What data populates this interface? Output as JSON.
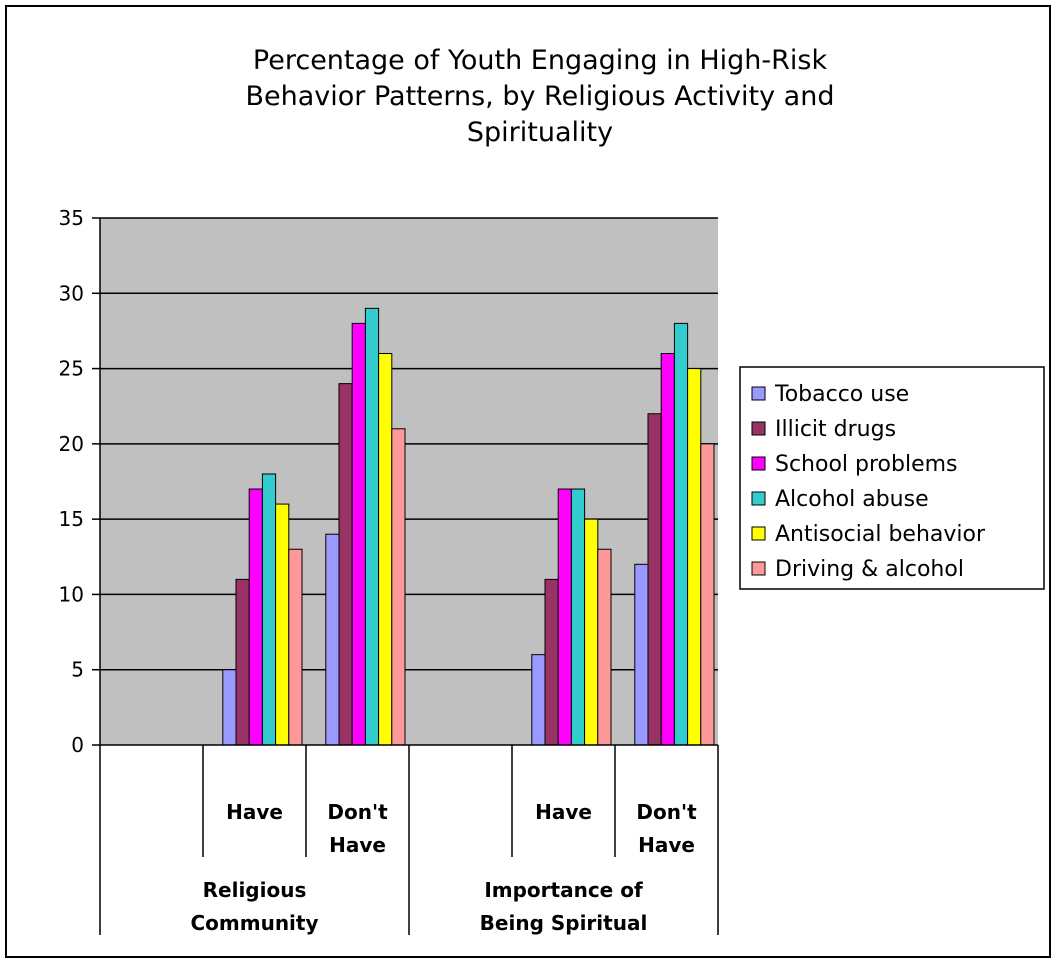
{
  "chart_data": {
    "type": "bar",
    "title_lines": [
      "Percentage of Youth Engaging in High-Risk",
      "Behavior Patterns, by Religious Activity and",
      "Spirituality"
    ],
    "ylim": [
      0,
      35
    ],
    "yticks": [
      0,
      5,
      10,
      15,
      20,
      25,
      30,
      35
    ],
    "grid": true,
    "legend_position": "right",
    "groups": [
      {
        "lines": [
          "Religious",
          "Community"
        ]
      },
      {
        "lines": [
          "Importance of",
          "Being Spiritual"
        ]
      }
    ],
    "categories": [
      {
        "lines": [
          ""
        ]
      },
      {
        "lines": [
          "Have"
        ]
      },
      {
        "lines": [
          "Don't",
          "Have"
        ]
      },
      {
        "lines": [
          ""
        ]
      },
      {
        "lines": [
          "Have"
        ]
      },
      {
        "lines": [
          "Don't",
          "Have"
        ]
      }
    ],
    "series": [
      {
        "name": "Tobacco use",
        "color": "#9999ff",
        "values": [
          null,
          5,
          14,
          null,
          6,
          12
        ]
      },
      {
        "name": "Illicit drugs",
        "color": "#993366",
        "values": [
          null,
          11,
          24,
          null,
          11,
          22
        ]
      },
      {
        "name": "School problems",
        "color": "#ff00ff",
        "values": [
          null,
          17,
          28,
          null,
          17,
          26
        ]
      },
      {
        "name": "Alcohol abuse",
        "color": "#33cccc",
        "values": [
          null,
          18,
          29,
          null,
          17,
          28
        ]
      },
      {
        "name": "Antisocial behavior",
        "color": "#ffff00",
        "values": [
          null,
          16,
          26,
          null,
          15,
          25
        ]
      },
      {
        "name": "Driving & alcohol",
        "color": "#ff9999",
        "values": [
          null,
          13,
          21,
          null,
          13,
          20
        ]
      }
    ],
    "plot_bg": "#c0c0c0"
  }
}
